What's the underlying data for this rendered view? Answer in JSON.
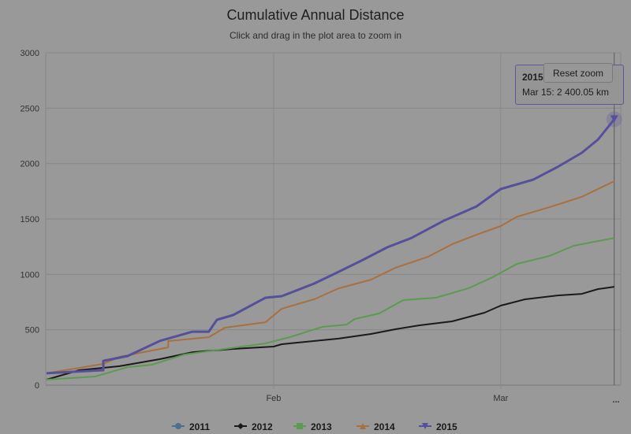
{
  "chart_data": {
    "type": "line",
    "title": "Cumulative Annual Distance",
    "subtitle": "Click and drag in the plot area to zoom in",
    "xlabel": "",
    "ylabel": "",
    "ylim": [
      0,
      3000
    ],
    "yticks": [
      "0",
      "500",
      "1000",
      "1500",
      "2000",
      "2500",
      "3000"
    ],
    "xlim": [
      "Jan 4",
      "Mar 16"
    ],
    "xticks": [
      "Feb",
      "Mar"
    ],
    "grid": true,
    "legend_position": "bottom",
    "series": [
      {
        "name": "2011",
        "color": "#4f6f8f",
        "marker": "circle",
        "x": [],
        "values": []
      },
      {
        "name": "2012",
        "color": "#1a1a1a",
        "marker": "diamond",
        "x": [
          "Jan 4",
          "Jan 8",
          "Jan 13",
          "Jan 18",
          "Jan 22",
          "Jan 27",
          "Feb 1",
          "Feb 2",
          "Feb 9",
          "Feb 13",
          "Feb 16",
          "Feb 19",
          "Feb 23",
          "Feb 27",
          "Mar 1",
          "Mar 4",
          "Mar 8",
          "Mar 11",
          "Mar 13",
          "Mar 15"
        ],
        "values": [
          50,
          135,
          171,
          235,
          298,
          327,
          348,
          370,
          420,
          462,
          505,
          540,
          576,
          654,
          718,
          775,
          810,
          824,
          867,
          888
        ]
      },
      {
        "name": "2013",
        "color": "#5c9a52",
        "marker": "square",
        "x": [
          "Jan 4",
          "Jan 10",
          "Jan 14",
          "Jan 17",
          "Jan 21",
          "Jan 26",
          "Jan 31",
          "Feb 3",
          "Feb 7",
          "Feb 10",
          "Feb 11",
          "Feb 14",
          "Feb 17",
          "Feb 21",
          "Feb 25",
          "Feb 28",
          "Mar 3",
          "Mar 7",
          "Mar 10",
          "Mar 15"
        ],
        "values": [
          50,
          78,
          163,
          185,
          277,
          327,
          377,
          434,
          526,
          547,
          597,
          647,
          768,
          789,
          874,
          974,
          1095,
          1166,
          1258,
          1329
        ]
      },
      {
        "name": "2014",
        "color": "#a8703e",
        "marker": "triangle",
        "x": [
          "Jan 4",
          "Jan 11",
          "Jan 13",
          "Jan 19",
          "Jan 19",
          "Jan 24",
          "Jan 26",
          "Jan 31",
          "Feb 2",
          "Feb 6",
          "Feb 9",
          "Feb 13",
          "Feb 16",
          "Feb 20",
          "Feb 23",
          "Feb 26",
          "Mar 1",
          "Mar 3",
          "Mar 7",
          "Mar 11",
          "Mar 15"
        ],
        "values": [
          107,
          192,
          256,
          341,
          398,
          433,
          519,
          568,
          690,
          775,
          874,
          952,
          1059,
          1158,
          1272,
          1357,
          1436,
          1520,
          1606,
          1700,
          1841
        ]
      },
      {
        "name": "2015",
        "color": "#55509a",
        "marker": "triangle-down",
        "x": [
          "Jan 4",
          "Jan 11",
          "Jan 11",
          "Jan 14",
          "Jan 18",
          "Jan 22",
          "Jan 24",
          "Jan 25",
          "Jan 27",
          "Jan 31",
          "Feb 2",
          "Feb 6",
          "Feb 9",
          "Feb 12",
          "Feb 15",
          "Feb 18",
          "Feb 22",
          "Feb 26",
          "Mar 1",
          "Mar 5",
          "Mar 8",
          "Mar 11",
          "Mar 13",
          "Mar 15"
        ],
        "values": [
          107,
          135,
          220,
          263,
          400,
          483,
          483,
          590,
          633,
          789,
          803,
          917,
          1023,
          1130,
          1244,
          1329,
          1485,
          1613,
          1770,
          1855,
          1969,
          2097,
          2217,
          2400
        ]
      }
    ]
  },
  "tooltip": {
    "series": "2015",
    "line": "Mar 15: 2 400.05 km"
  },
  "reset_zoom_label": "Reset zoom",
  "menu_label": "..."
}
